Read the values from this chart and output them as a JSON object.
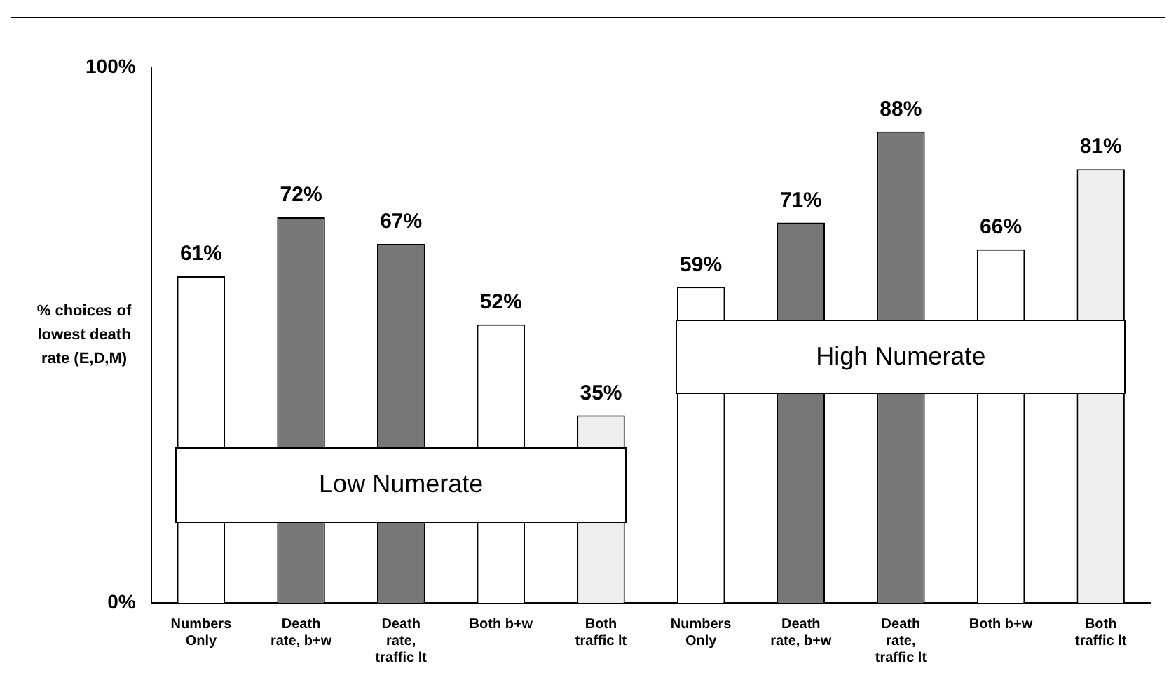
{
  "chart_data": {
    "type": "bar",
    "ylabel": "% choices of lowest death rate (E,D,M)",
    "categories": [
      "Numbers Only",
      "Death rate, b+w",
      "Death rate, traffic lt",
      "Both b+w",
      "Both traffic lt",
      "Numbers Only",
      "Death rate, b+w",
      "Death rate, traffic lt",
      "Both b+w",
      "Both traffic lt"
    ],
    "values": [
      61,
      72,
      67,
      52,
      35,
      59,
      71,
      88,
      66,
      81
    ],
    "value_labels": [
      "61%",
      "72%",
      "67%",
      "52%",
      "35%",
      "59%",
      "71%",
      "88%",
      "66%",
      "81%"
    ],
    "colors": [
      "#ffffff",
      "#777777",
      "#777777",
      "#ffffff",
      "#eeeeee",
      "#ffffff",
      "#777777",
      "#777777",
      "#ffffff",
      "#eeeeee"
    ],
    "ylim": [
      0,
      100
    ],
    "yticks": [
      {
        "value": 0,
        "label": "0%"
      },
      {
        "value": 100,
        "label": "100%"
      }
    ],
    "annotations": [
      "Low Numerate",
      "High Numerate"
    ],
    "grid": false,
    "legend": false
  }
}
